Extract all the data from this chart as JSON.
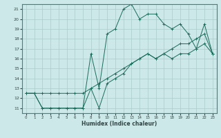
{
  "xlabel": "Humidex (Indice chaleur)",
  "bg_color": "#cce8e8",
  "grid_color": "#aacccc",
  "line_color": "#1a6b5a",
  "xlim": [
    -0.5,
    23.5
  ],
  "ylim": [
    10.5,
    21.5
  ],
  "xticks": [
    0,
    1,
    2,
    3,
    4,
    5,
    6,
    7,
    8,
    9,
    10,
    11,
    12,
    13,
    14,
    15,
    16,
    17,
    18,
    19,
    20,
    21,
    22,
    23
  ],
  "yticks": [
    11,
    12,
    13,
    14,
    15,
    16,
    17,
    18,
    19,
    20,
    21
  ],
  "line1_x": [
    0,
    1,
    2,
    3,
    4,
    5,
    6,
    7,
    8,
    9,
    10,
    11,
    12,
    13,
    14,
    15,
    16,
    17,
    18,
    19,
    20,
    21,
    22,
    23
  ],
  "line1_y": [
    12.5,
    12.5,
    12.5,
    12.5,
    12.5,
    12.5,
    12.5,
    12.5,
    13.0,
    13.5,
    14.0,
    14.5,
    15.0,
    15.5,
    16.0,
    16.5,
    16.0,
    16.5,
    17.0,
    17.5,
    17.5,
    18.0,
    18.5,
    16.5
  ],
  "line2_x": [
    0,
    1,
    2,
    3,
    4,
    5,
    6,
    7,
    8,
    9,
    10,
    11,
    12,
    13,
    14,
    15,
    16,
    17,
    18,
    19,
    20,
    21,
    22,
    23
  ],
  "line2_y": [
    12.5,
    12.5,
    11.0,
    11.0,
    11.0,
    11.0,
    11.0,
    11.0,
    16.5,
    13.0,
    18.5,
    19.0,
    21.0,
    21.5,
    20.0,
    20.5,
    20.5,
    19.5,
    19.0,
    19.5,
    18.5,
    17.0,
    19.5,
    16.5
  ],
  "line3_x": [
    0,
    1,
    2,
    3,
    4,
    5,
    6,
    7,
    8,
    9,
    10,
    11,
    12,
    13,
    14,
    15,
    16,
    17,
    18,
    19,
    20,
    21,
    22,
    23
  ],
  "line3_y": [
    12.5,
    12.5,
    11.0,
    11.0,
    11.0,
    11.0,
    11.0,
    11.0,
    13.0,
    11.0,
    13.5,
    14.0,
    14.5,
    15.5,
    16.0,
    16.5,
    16.0,
    16.5,
    16.0,
    16.5,
    16.5,
    17.0,
    17.5,
    16.5
  ]
}
